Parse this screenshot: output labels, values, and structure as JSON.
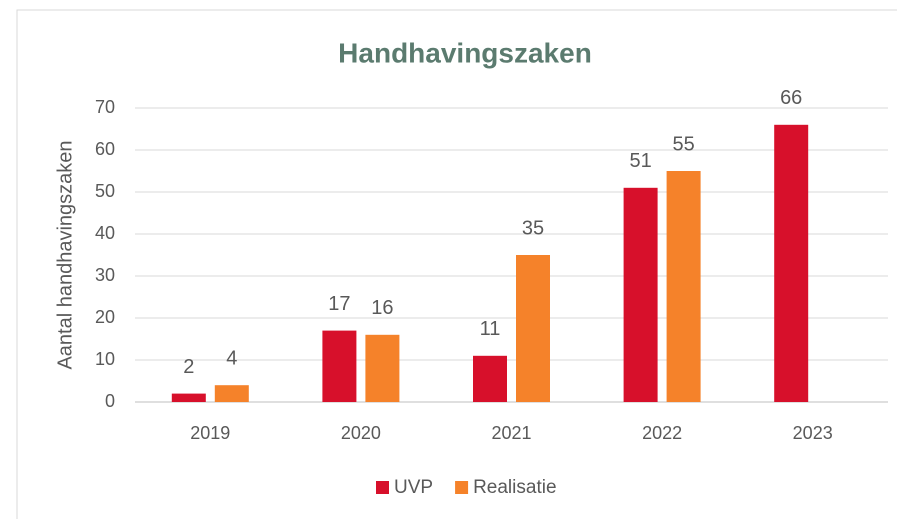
{
  "chart_data": {
    "type": "bar",
    "title": "Handhavingszaken",
    "y_label": "Aantal handhavingszaken",
    "categories": [
      "2019",
      "2020",
      "2021",
      "2022",
      "2023"
    ],
    "series": [
      {
        "name": "UVP",
        "color": "#d7102b",
        "values": [
          2,
          17,
          11,
          51,
          66
        ]
      },
      {
        "name": "Realisatie",
        "color": "#f5822a",
        "values": [
          4,
          16,
          35,
          55,
          null
        ]
      }
    ],
    "ylim": [
      0,
      70
    ],
    "yticks": [
      0,
      10,
      20,
      30,
      40,
      50,
      60,
      70
    ],
    "grid": true,
    "legend": "bottom"
  }
}
